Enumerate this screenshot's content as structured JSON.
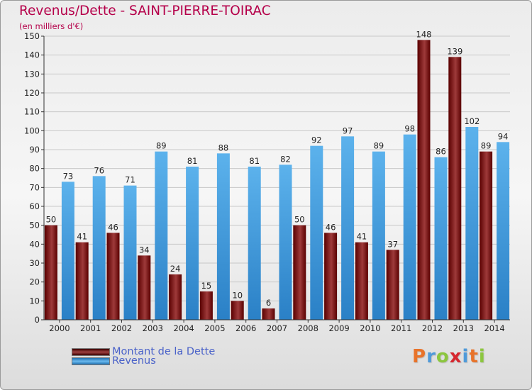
{
  "header": {
    "title": "Revenus/Dette - SAINT-PIERRE-TOIRAC",
    "subtitle": "(en milliers d'€)"
  },
  "legend": {
    "items": [
      {
        "label": "Montant de la Dette"
      },
      {
        "label": "Revenus"
      }
    ]
  },
  "logo": {
    "letters": [
      "P",
      "r",
      "o",
      "x",
      "i",
      "t",
      "i"
    ]
  },
  "colors": {
    "debt_dark": "#5a0000",
    "debt_light": "#9e3a3a",
    "revenue_dark": "#2a80c6",
    "revenue_light": "#5cb2ec",
    "axis": "#333333",
    "grid": "#c8c8c8",
    "title": "#b5004a",
    "logo": [
      "#e8732a",
      "#4f9ad9",
      "#8cc63f",
      "#d6272f",
      "#4f9ad9",
      "#e8732a",
      "#8cc63f"
    ]
  },
  "chart_data": {
    "type": "bar",
    "title": "Revenus/Dette - SAINT-PIERRE-TOIRAC",
    "ylabel": "(en milliers d'€)",
    "xlabel": "",
    "categories": [
      "2000",
      "2001",
      "2002",
      "2003",
      "2004",
      "2005",
      "2006",
      "2007",
      "2008",
      "2009",
      "2010",
      "2011",
      "2012",
      "2013",
      "2014"
    ],
    "series": [
      {
        "name": "Montant de la Dette",
        "values": [
          50,
          41,
          46,
          34,
          24,
          15,
          10,
          6,
          50,
          46,
          41,
          37,
          148,
          139,
          89
        ]
      },
      {
        "name": "Revenus",
        "values": [
          73,
          76,
          71,
          89,
          81,
          88,
          81,
          82,
          92,
          97,
          89,
          98,
          86,
          102,
          94
        ]
      }
    ],
    "ylim": [
      0,
      150
    ],
    "yticks": [
      0,
      10,
      20,
      30,
      40,
      50,
      60,
      70,
      80,
      90,
      100,
      110,
      120,
      130,
      140,
      150
    ],
    "grid": true,
    "legend": "bottom-left"
  }
}
